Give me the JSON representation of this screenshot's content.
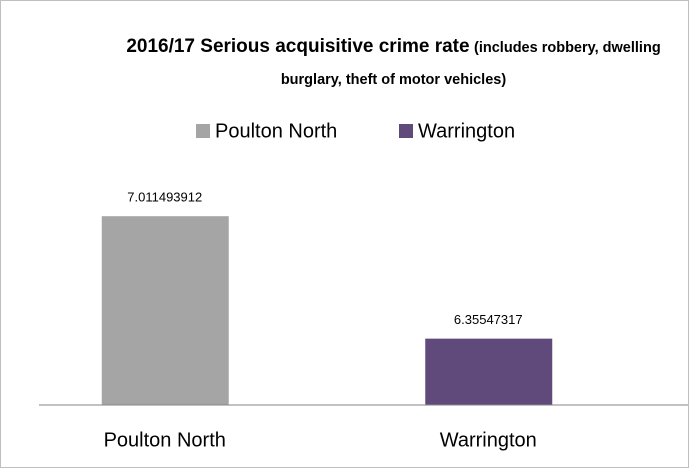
{
  "chart_data": {
    "type": "bar",
    "title": "2016/17 Serious acquisitive crime rate",
    "subtitle": "(includes robbery, dwelling burglary, theft of motor vehicles)",
    "categories": [
      "Poulton North",
      "Warrington"
    ],
    "values": [
      7.011493912,
      6.35547317
    ],
    "colors": [
      "#a5a5a5",
      "#604a7b"
    ],
    "ylim": [
      6,
      7.2
    ],
    "legend": "top"
  }
}
